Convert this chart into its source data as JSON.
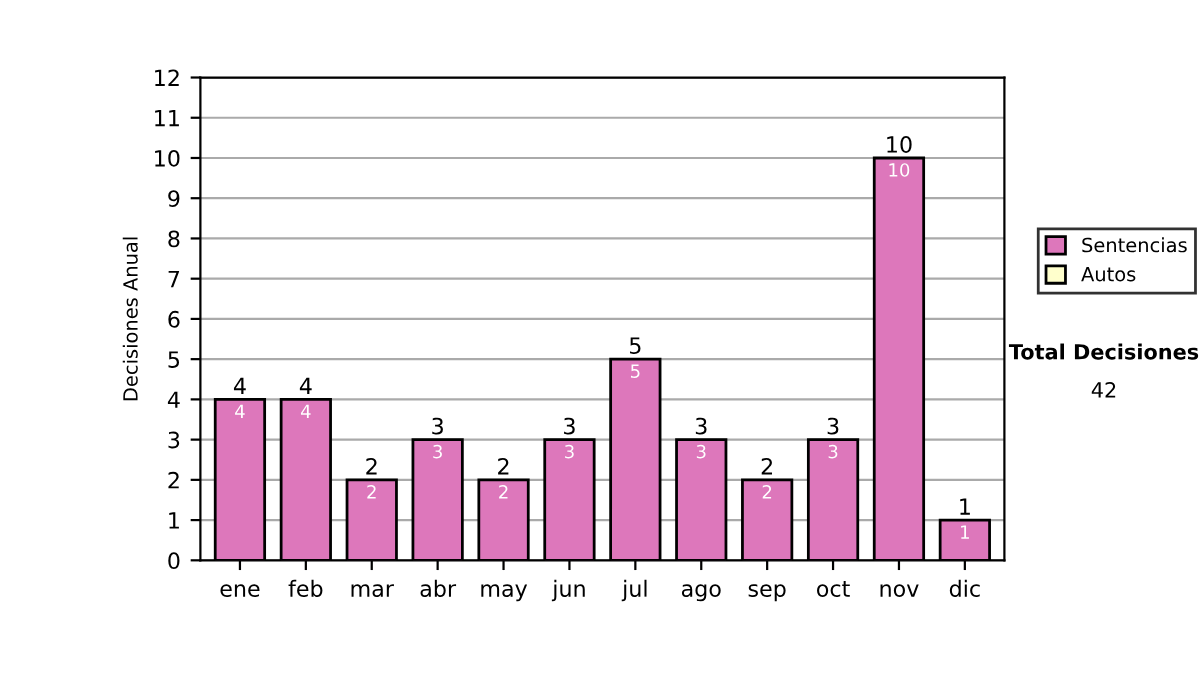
{
  "chart_data": {
    "type": "bar",
    "ylabel": "Decisiones Anual",
    "categories": [
      "ene",
      "feb",
      "mar",
      "abr",
      "may",
      "jun",
      "jul",
      "ago",
      "sep",
      "oct",
      "nov",
      "dic"
    ],
    "series": [
      {
        "name": "Sentencias",
        "color": "#dd77bb",
        "values": [
          4,
          4,
          2,
          3,
          2,
          3,
          5,
          3,
          2,
          3,
          10,
          1
        ],
        "value_labels": [
          "4",
          "4",
          "2",
          "3",
          "2",
          "3",
          "5",
          "3",
          "2",
          "3",
          "10",
          "1"
        ]
      },
      {
        "name": "Autos",
        "color": "#ffffcc",
        "values": [
          0,
          0,
          0,
          0,
          0,
          0,
          0,
          0,
          0,
          0,
          0,
          0
        ]
      }
    ],
    "stacked": true,
    "totals": [
      "4",
      "4",
      "2",
      "3",
      "2",
      "3",
      "5",
      "3",
      "2",
      "3",
      "10",
      "1"
    ],
    "ylim": [
      0,
      12
    ],
    "yticks": [
      0,
      1,
      2,
      3,
      4,
      5,
      6,
      7,
      8,
      9,
      10,
      11,
      12
    ],
    "grid": "y",
    "legend": "right",
    "annotations": [
      "Total Decisiones",
      "42"
    ]
  }
}
